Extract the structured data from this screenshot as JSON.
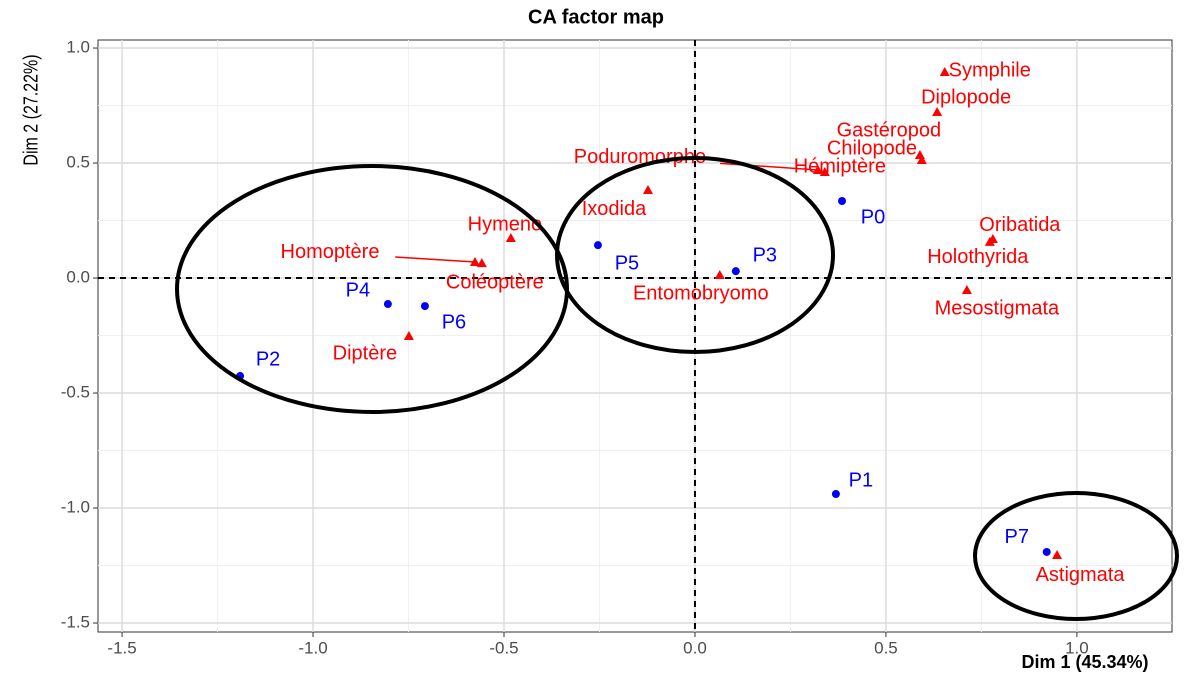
{
  "chart_data": {
    "type": "scatter",
    "title": "CA factor map",
    "x_label": "Dim 1 (45.34%)",
    "y_label": "Dim 2 (27.22%)",
    "xlim": [
      -1.563,
      1.249
    ],
    "ylim": [
      -1.539,
      1.035
    ],
    "xticks": [
      {
        "value": -1.5,
        "label": "-1.5"
      },
      {
        "value": -1.0,
        "label": "-1.0"
      },
      {
        "value": -0.5,
        "label": "-0.5"
      },
      {
        "value": 0,
        "label": "0.0"
      },
      {
        "value": 0.5,
        "label": "0.5"
      },
      {
        "value": 1.0,
        "label": "1.0"
      }
    ],
    "yticks": [
      {
        "value": -1.5,
        "label": "-1.5"
      },
      {
        "value": -1.0,
        "label": "-1.0"
      },
      {
        "value": -0.5,
        "label": "-0.5"
      },
      {
        "value": 0,
        "label": "0.0"
      },
      {
        "value": 0.5,
        "label": "0.5"
      },
      {
        "value": 1.0,
        "label": "1.0"
      }
    ],
    "grid": true,
    "series": [
      {
        "color": "#0000ff",
        "marker": "circle",
        "labels": [
          "P0",
          "P1",
          "P2",
          "P3",
          "P4",
          "P5",
          "P6",
          "P7"
        ],
        "x": [
          0.385,
          0.369,
          -1.191,
          0.107,
          -0.804,
          -0.254,
          -0.707,
          0.921
        ],
        "values": [
          0.335,
          -0.939,
          -0.426,
          0.03,
          -0.113,
          0.143,
          -0.122,
          -1.191
        ]
      },
      {
        "color": "#ff0000",
        "marker": "triangle",
        "labels": [
          "Symphile",
          "Diplopode",
          "Gastéropod",
          "Chilopode",
          "Hémiptère",
          "Poduromorphe",
          "Ixodida",
          "Hymeno",
          "Homoptère",
          "Coléoptère",
          "Diptère",
          "Entomobryomo",
          "Oribatida",
          "Holothyrida",
          "Mesostigmata",
          "Astigmata"
        ],
        "x": [
          0.654,
          0.634,
          0.594,
          0.589,
          0.34,
          0.322,
          -0.123,
          -0.482,
          -0.576,
          -0.558,
          -0.749,
          0.065,
          0.78,
          0.772,
          0.712,
          0.948
        ],
        "values": [
          0.896,
          0.722,
          0.513,
          0.535,
          0.461,
          0.47,
          0.383,
          0.174,
          0.07,
          0.065,
          -0.252,
          0.013,
          0.17,
          0.157,
          -0.052,
          -1.204
        ]
      }
    ]
  }
}
